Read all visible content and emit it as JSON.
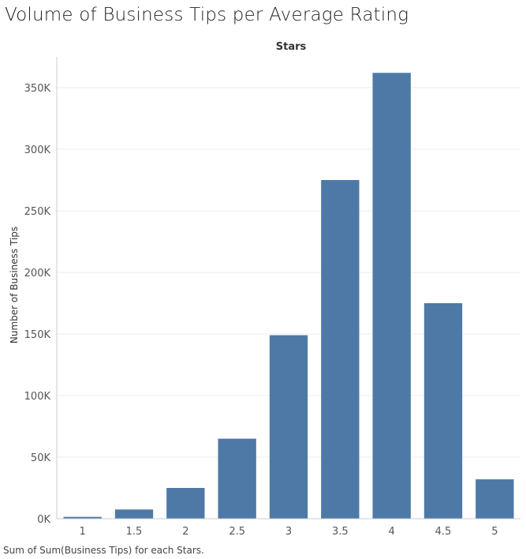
{
  "title": "Volume of Business Tips per Average Rating",
  "footer": "Sum of Sum(Business Tips) for each Stars.",
  "colors": {
    "bar": "#4e79a7",
    "grid": "#eeeeee",
    "axis": "#cccccc",
    "text": "#555555"
  },
  "chart_data": {
    "type": "bar",
    "categories": [
      "1",
      "1.5",
      "2",
      "2.5",
      "3",
      "3.5",
      "4",
      "4.5",
      "5"
    ],
    "values": [
      1500,
      7500,
      25000,
      65000,
      149000,
      275000,
      362000,
      175000,
      32000
    ],
    "xlabel": "Stars",
    "ylabel": "Number of Business Tips",
    "ylim": [
      0,
      375000
    ],
    "yticks": [
      0,
      50000,
      100000,
      150000,
      200000,
      250000,
      300000,
      350000
    ],
    "ytick_labels": [
      "0K",
      "50K",
      "100K",
      "150K",
      "200K",
      "250K",
      "300K",
      "350K"
    ],
    "grid": true,
    "legend": "none"
  }
}
